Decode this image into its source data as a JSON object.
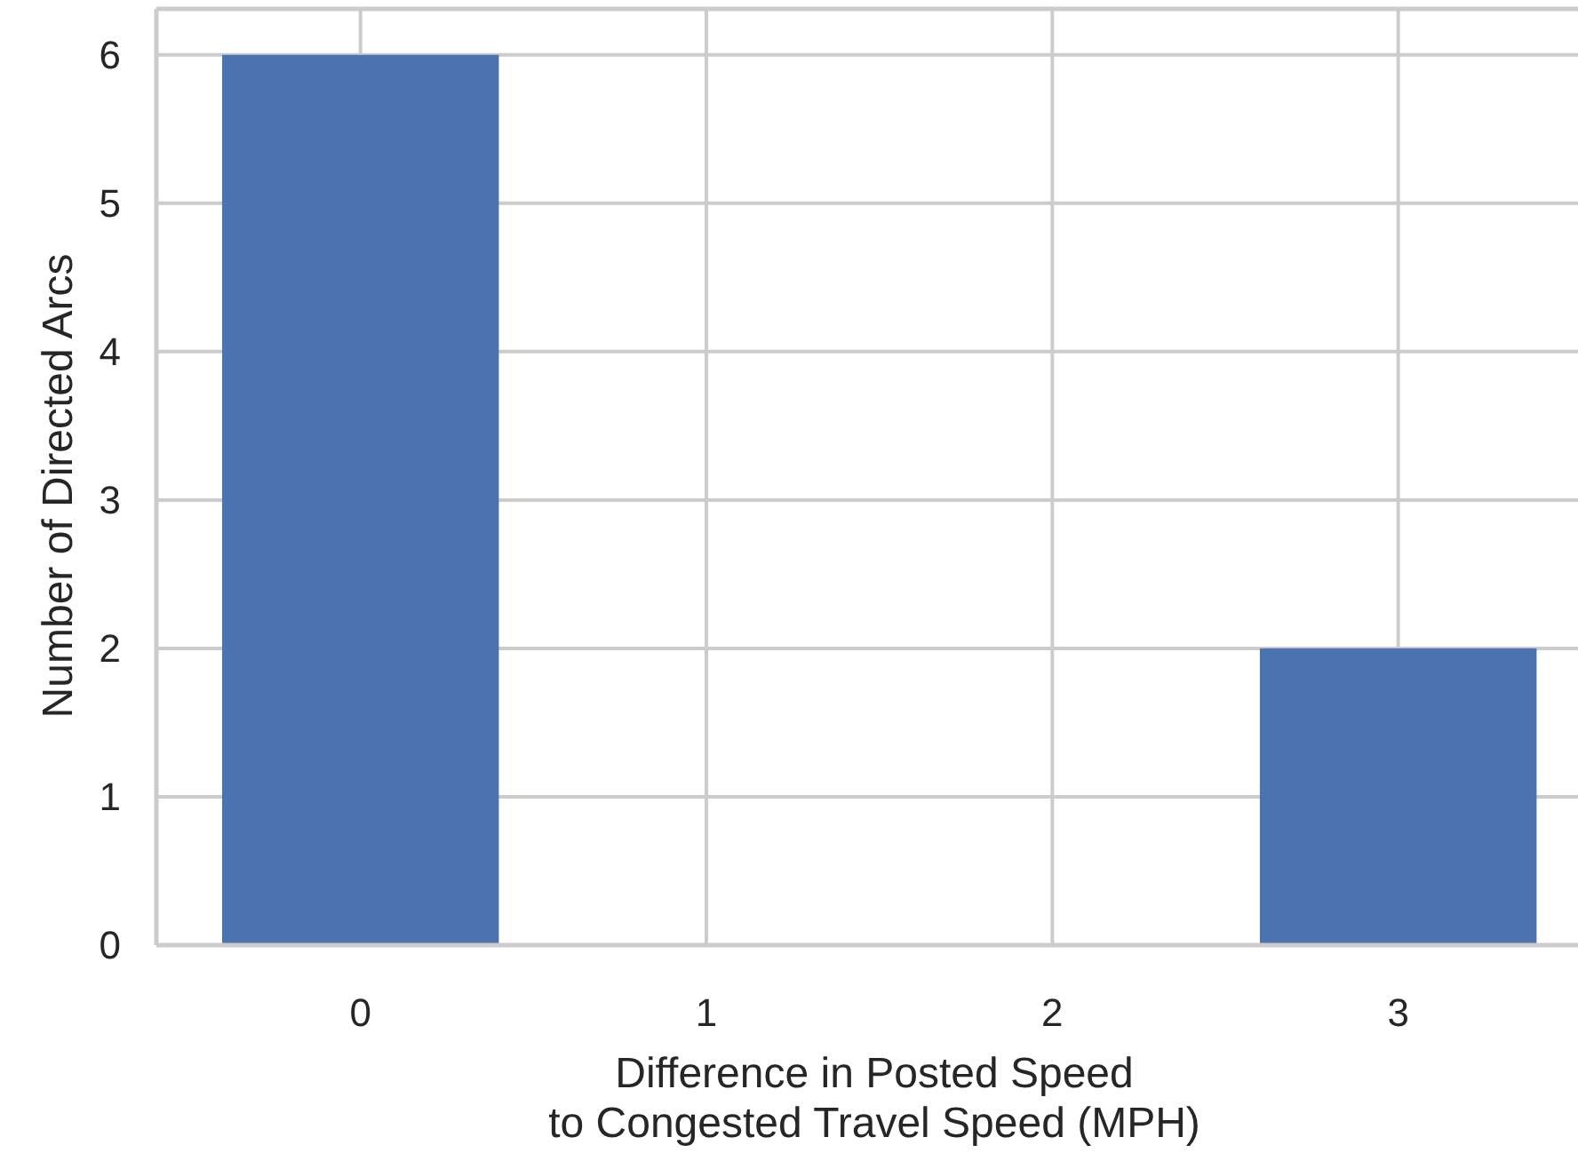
{
  "chart_data": {
    "type": "bar",
    "xlabel": "Difference in Posted Speed\nto Congested Travel Speed (MPH)",
    "ylabel": "Number of Directed Arcs",
    "categories": [
      "0",
      "1",
      "2",
      "3"
    ],
    "values": [
      6,
      0,
      0,
      2
    ],
    "color": "#4c72b0",
    "ylim": [
      0,
      6.31
    ],
    "yticks": [
      0,
      1,
      2,
      3,
      4,
      5,
      6
    ],
    "grid": true
  }
}
